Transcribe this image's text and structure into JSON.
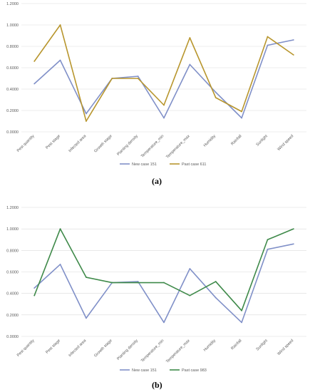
{
  "chart_data": [
    {
      "type": "line",
      "panel_label": "(a)",
      "categories": [
        "Pest quantity",
        "Pest stage",
        "Infected area",
        "Growth stage",
        "Planting density",
        "Temperature_min",
        "Temperature_max",
        "Humidity",
        "Rainfall",
        "Sunlight",
        "Wind speed"
      ],
      "ylim": [
        0,
        1.2
      ],
      "yticks": [
        "0.0000",
        "0.2000",
        "0.4000",
        "0.6000",
        "0.8000",
        "1.0000",
        "1.2000"
      ],
      "grid": true,
      "legend_position": "bottom",
      "series": [
        {
          "name": "New case 151",
          "color": "#8090c8",
          "values": [
            0.45,
            0.67,
            0.17,
            0.5,
            0.52,
            0.13,
            0.63,
            0.37,
            0.13,
            0.81,
            0.86
          ]
        },
        {
          "name": "Past case 611",
          "color": "#b8962e",
          "values": [
            0.66,
            1.0,
            0.1,
            0.5,
            0.5,
            0.25,
            0.88,
            0.32,
            0.19,
            0.89,
            0.72
          ]
        }
      ]
    },
    {
      "type": "line",
      "panel_label": "(b)",
      "categories": [
        "Pest quantity",
        "Pest stage",
        "Infected area",
        "Growth stage",
        "Planting density",
        "Temperature_min",
        "Temperature_max",
        "Humidity",
        "Rainfall",
        "Sunlight",
        "Wind speed"
      ],
      "ylim": [
        0,
        1.2
      ],
      "yticks": [
        "0.0000",
        "0.2000",
        "0.4000",
        "0.6000",
        "0.8000",
        "1.0000",
        "1.2000"
      ],
      "grid": true,
      "legend_position": "bottom",
      "series": [
        {
          "name": "New case 151",
          "color": "#8090c8",
          "values": [
            0.45,
            0.67,
            0.17,
            0.5,
            0.51,
            0.13,
            0.63,
            0.36,
            0.13,
            0.81,
            0.86
          ]
        },
        {
          "name": "Past case 983",
          "color": "#3f8a4a",
          "values": [
            0.38,
            1.0,
            0.55,
            0.5,
            0.5,
            0.5,
            0.38,
            0.51,
            0.24,
            0.9,
            1.0
          ]
        }
      ]
    }
  ]
}
